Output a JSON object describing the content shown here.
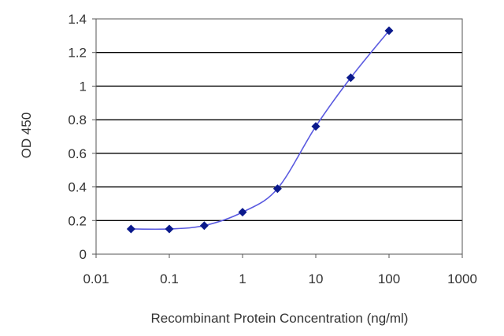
{
  "chart_data": {
    "type": "line",
    "title": "",
    "xlabel": "Recombinant Protein Concentration (ng/ml)",
    "ylabel": "OD 450",
    "x_scale": "log",
    "xlim": [
      0.01,
      1000
    ],
    "ylim": [
      0,
      1.4
    ],
    "x_ticks": [
      0.01,
      0.1,
      1,
      10,
      100,
      1000
    ],
    "x_tick_labels": [
      "0.01",
      "0.1",
      "1",
      "10",
      "100",
      "1000"
    ],
    "y_ticks": [
      0,
      0.2,
      0.4,
      0.6,
      0.8,
      1,
      1.2,
      1.4
    ],
    "y_tick_labels": [
      "0",
      "0.2",
      "0.4",
      "0.6",
      "0.8",
      "1",
      "1.2",
      "1.4"
    ],
    "grid": "horizontal",
    "legend": "none",
    "series": [
      {
        "x": [
          0.03,
          0.1,
          0.3,
          1,
          3,
          10,
          30,
          100
        ],
        "y": [
          0.15,
          0.15,
          0.17,
          0.25,
          0.39,
          0.76,
          1.05,
          1.33
        ]
      }
    ],
    "colors": {
      "line": "#5a5ae0",
      "marker": "#0b1a8c",
      "grid": "#000000"
    }
  }
}
